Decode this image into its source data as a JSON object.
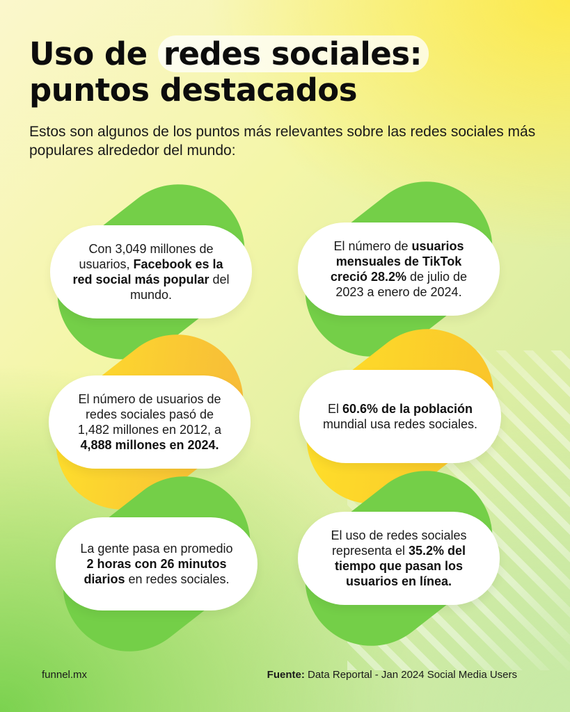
{
  "title": {
    "line1_pre": "Uso de",
    "line1_highlight": "redes sociales:",
    "line2": "puntos destacados"
  },
  "subtitle": "Estos son algunos de los puntos más relevantes sobre las redes sociales más populares alrededor del mundo:",
  "colors": {
    "green": "#74cf48",
    "yellow": "#ffe22a",
    "orange": "#f9c12b",
    "card_bg": "#ffffff"
  },
  "cards": [
    {
      "accent": "green",
      "parts": [
        {
          "text": "Con 3,049 millones de usuarios, ",
          "bold": false
        },
        {
          "text": "Facebook es la red social más popular",
          "bold": true
        },
        {
          "text": " del mundo.",
          "bold": false
        }
      ]
    },
    {
      "accent": "green",
      "parts": [
        {
          "text": "El número de ",
          "bold": false
        },
        {
          "text": "usuarios mensuales de TikTok creció 28.2%",
          "bold": true
        },
        {
          "text": " de julio de 2023 a enero de 2024.",
          "bold": false
        }
      ]
    },
    {
      "accent": "yellow-orange",
      "parts": [
        {
          "text": "El número de usuarios de redes sociales pasó de 1,482 millones en 2012, a ",
          "bold": false
        },
        {
          "text": "4,888 millones en 2024.",
          "bold": true
        }
      ]
    },
    {
      "accent": "yellow",
      "parts": [
        {
          "text": "El ",
          "bold": false
        },
        {
          "text": "60.6% de la población",
          "bold": true
        },
        {
          "text": " mundial usa redes sociales.",
          "bold": false
        }
      ]
    },
    {
      "accent": "green",
      "parts": [
        {
          "text": "La gente pasa en promedio ",
          "bold": false
        },
        {
          "text": "2 horas con 26 minutos diarios",
          "bold": true
        },
        {
          "text": " en redes sociales.",
          "bold": false
        }
      ]
    },
    {
      "accent": "green",
      "parts": [
        {
          "text": "El uso de redes sociales representa el ",
          "bold": false
        },
        {
          "text": "35.2% del tiempo que pasan los usuarios en línea.",
          "bold": true
        }
      ]
    }
  ],
  "footer": {
    "brand": "funnel.mx",
    "source_label": "Fuente:",
    "source_text": " Data Reportal - Jan 2024 Social Media Users"
  }
}
